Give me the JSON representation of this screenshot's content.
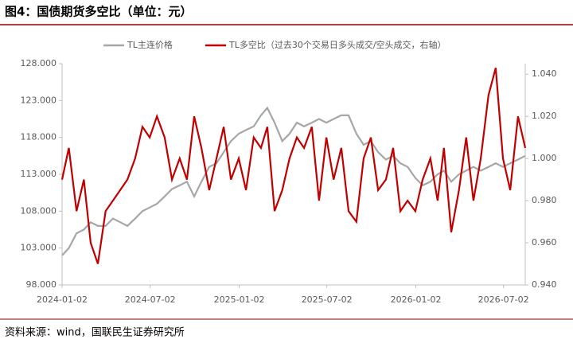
{
  "chart_data": {
    "type": "line",
    "title": "图4：国债期货多空比（单位：元）",
    "source": "资料来源：wind，国联民生证券研究所",
    "x": [
      "2024-01-02",
      "2024-01-16",
      "2024-02-01",
      "2024-02-16",
      "2024-03-01",
      "2024-03-16",
      "2024-04-01",
      "2024-04-16",
      "2024-05-01",
      "2024-05-16",
      "2024-06-01",
      "2024-06-16",
      "2024-07-01",
      "2024-07-16",
      "2024-08-01",
      "2024-08-16",
      "2024-09-01",
      "2024-09-16",
      "2024-10-01",
      "2024-10-16",
      "2024-11-01",
      "2024-11-16",
      "2024-12-01",
      "2024-12-16",
      "2025-01-01",
      "2025-01-16",
      "2025-02-01",
      "2025-02-16",
      "2025-03-01",
      "2025-03-16",
      "2025-04-01",
      "2025-04-16",
      "2025-05-01",
      "2025-05-16",
      "2025-06-01",
      "2025-06-16",
      "2025-07-01",
      "2025-07-16",
      "2025-08-01",
      "2025-08-16",
      "2025-09-01",
      "2025-09-16",
      "2025-10-01",
      "2025-10-16",
      "2025-11-01",
      "2025-11-16",
      "2025-12-01",
      "2025-12-16",
      "2026-01-01",
      "2026-01-16",
      "2026-02-01",
      "2026-02-16",
      "2026-03-01",
      "2026-03-16",
      "2026-04-01",
      "2026-04-16",
      "2026-05-01",
      "2026-05-16",
      "2026-06-01",
      "2026-06-16",
      "2026-07-01",
      "2026-07-16",
      "2026-08-01",
      "2026-08-16"
    ],
    "xlim": [
      "2024-01-02",
      "2026-08-16"
    ],
    "xticks": [
      "2024-01-02",
      "2024-07-02",
      "2025-01-02",
      "2025-07-02",
      "2026-01-02",
      "2026-07-02"
    ],
    "ylim": [
      98,
      128
    ],
    "yticks": [
      {
        "value": 98,
        "label": "98.000"
      },
      {
        "value": 103,
        "label": "103.000"
      },
      {
        "value": 108,
        "label": "108.000"
      },
      {
        "value": 113,
        "label": "113.000"
      },
      {
        "value": 118,
        "label": "118.000"
      },
      {
        "value": 123,
        "label": "123.000"
      },
      {
        "value": 128,
        "label": "128.000"
      }
    ],
    "y2lim": [
      0.94,
      1.045
    ],
    "y2ticks": [
      {
        "value": 0.94,
        "label": "0.940"
      },
      {
        "value": 0.96,
        "label": "0.960"
      },
      {
        "value": 0.98,
        "label": "0.980"
      },
      {
        "value": 1.0,
        "label": "1.000"
      },
      {
        "value": 1.02,
        "label": "1.020"
      },
      {
        "value": 1.04,
        "label": "1.040"
      }
    ],
    "legend": "top",
    "series": [
      {
        "name": "TL主连价格",
        "color": "#a6a6a6",
        "values": [
          102,
          103,
          105,
          105.5,
          106.5,
          106,
          106,
          107,
          106.5,
          106,
          107,
          108,
          108.5,
          109,
          110,
          111,
          111.5,
          112,
          110,
          112,
          114,
          114.5,
          116,
          117.5,
          118.5,
          119,
          119.5,
          121,
          122,
          120,
          117.5,
          118.5,
          120,
          119.5,
          120,
          120.5,
          120,
          120.5,
          121,
          121,
          118.5,
          117,
          117.5,
          116,
          115,
          115.5,
          114.5,
          114,
          112.5,
          111.5,
          112,
          113,
          113.5,
          112,
          113,
          113.5,
          114,
          113.5,
          114,
          114.5,
          114,
          114.5,
          115,
          115.5
        ]
      },
      {
        "name": "TL多空比（过去30个交易日多头成交/空头成交，右轴）",
        "color": "#c00000",
        "axis": "y2",
        "values": [
          0.99,
          1.005,
          0.975,
          0.99,
          0.96,
          0.95,
          0.975,
          0.98,
          0.985,
          0.99,
          1.0,
          1.015,
          1.01,
          1.02,
          1.01,
          0.99,
          1.0,
          0.99,
          1.02,
          1.005,
          0.985,
          1.0,
          1.015,
          0.99,
          1.0,
          0.985,
          1.01,
          1.005,
          1.015,
          0.975,
          0.985,
          1.0,
          1.01,
          1.005,
          1.015,
          0.98,
          1.01,
          0.99,
          1.005,
          0.975,
          0.97,
          1.0,
          1.01,
          0.985,
          0.99,
          1.005,
          0.975,
          0.98,
          0.975,
          0.99,
          1.0,
          0.98,
          1.005,
          0.965,
          0.985,
          1.01,
          0.98,
          1.0,
          1.03,
          1.043,
          1.0,
          0.985,
          1.02,
          1.005
        ]
      }
    ]
  }
}
